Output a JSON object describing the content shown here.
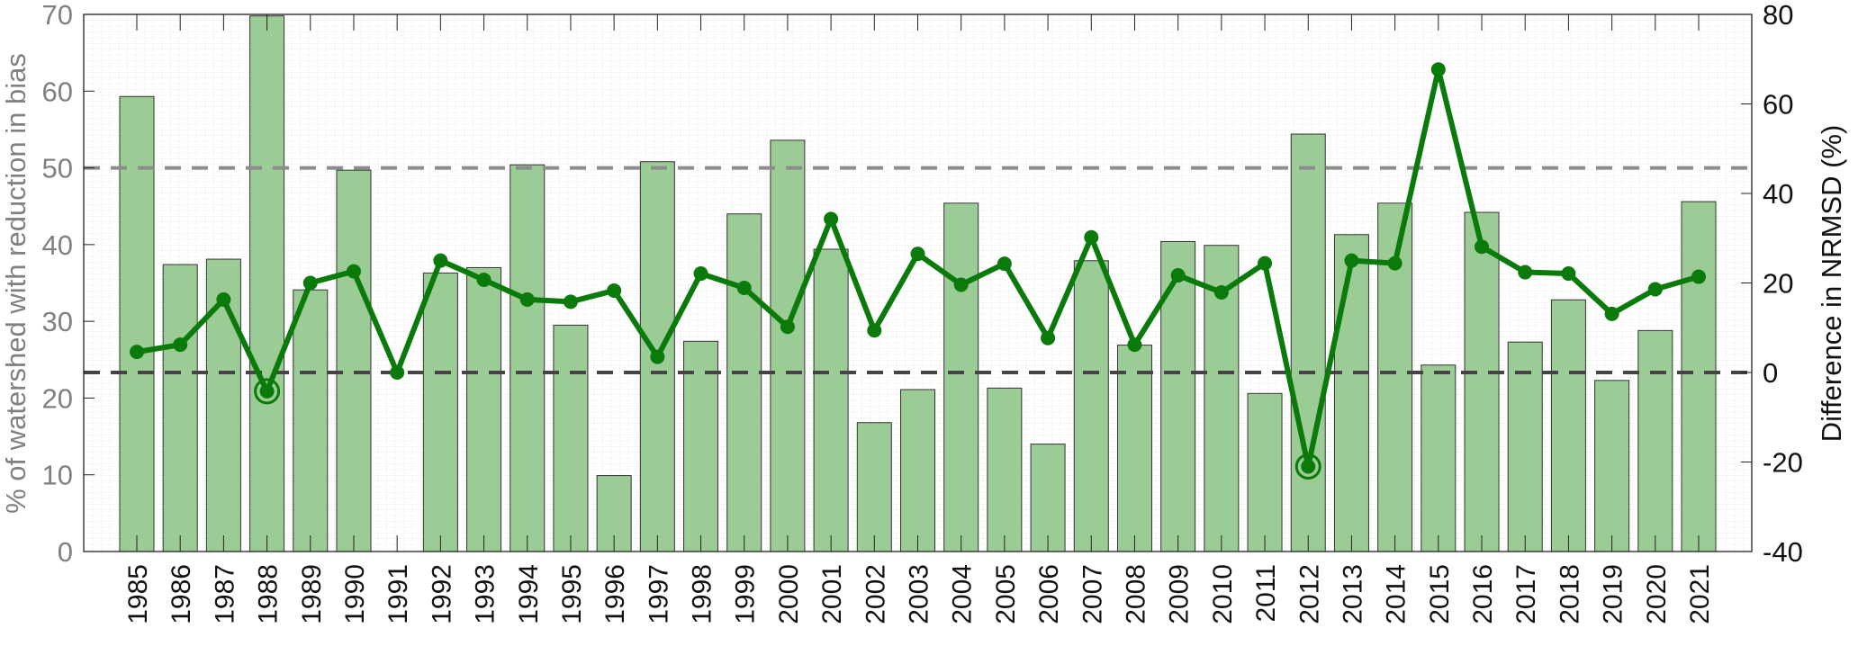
{
  "chart_data": {
    "type": "bar+line",
    "title": "",
    "xlabel": "",
    "ylabel_left": "% of watershed with reduction in bias",
    "ylabel_right": "Difference in NRMSD (%)",
    "ylim_left": [
      0,
      70
    ],
    "ylim_right": [
      -40,
      80
    ],
    "yticks_left": [
      "0",
      "10",
      "20",
      "30",
      "40",
      "50",
      "60",
      "70"
    ],
    "yticks_right": [
      "-40",
      "-20",
      "0",
      "20",
      "40",
      "60",
      "80"
    ],
    "grid": "minor dotted",
    "categories": [
      "1985",
      "1986",
      "1987",
      "1988",
      "1989",
      "1990",
      "1991",
      "1992",
      "1993",
      "1994",
      "1995",
      "1996",
      "1997",
      "1998",
      "1999",
      "2000",
      "2001",
      "2002",
      "2003",
      "2004",
      "2005",
      "2006",
      "2007",
      "2008",
      "2009",
      "2010",
      "2011",
      "2012",
      "2013",
      "2014",
      "2015",
      "2016",
      "2017",
      "2018",
      "2019",
      "2020",
      "2021"
    ],
    "series": [
      {
        "name": "% of watershed with reduction in bias",
        "type": "bar",
        "axis": "left",
        "color": "#9ccc96",
        "values": [
          59.3,
          37.4,
          38.1,
          69.8,
          34.1,
          49.7,
          0,
          36.3,
          37.0,
          50.4,
          29.5,
          9.9,
          50.8,
          27.4,
          44.0,
          53.6,
          39.4,
          16.8,
          21.1,
          45.4,
          21.3,
          14.0,
          37.9,
          26.9,
          40.4,
          39.9,
          20.6,
          54.4,
          41.3,
          45.4,
          24.3,
          44.2,
          27.3,
          32.8,
          22.3,
          28.8,
          45.6
        ]
      },
      {
        "name": "Difference in NRMSD (%)",
        "type": "line",
        "axis": "right",
        "color": "#0a7a0a",
        "values": [
          4.6,
          6.2,
          16.3,
          -4.2,
          20.0,
          22.6,
          0.0,
          25.0,
          20.7,
          16.3,
          15.8,
          18.3,
          3.5,
          22.1,
          18.9,
          10.2,
          34.3,
          9.4,
          26.5,
          19.6,
          24.3,
          7.7,
          30.2,
          6.2,
          21.7,
          17.9,
          24.4,
          -21.0,
          25.0,
          24.4,
          67.7,
          28.1,
          22.4,
          22.1,
          13.1,
          18.6,
          21.4
        ],
        "highlighted": [
          "1988",
          "2012"
        ]
      }
    ],
    "reference_lines": [
      {
        "axis": "left",
        "value": 50,
        "color": "#8c8c8c",
        "style": "dashed"
      },
      {
        "axis": "right",
        "value": 0,
        "color": "#444444",
        "style": "dashed"
      }
    ]
  }
}
